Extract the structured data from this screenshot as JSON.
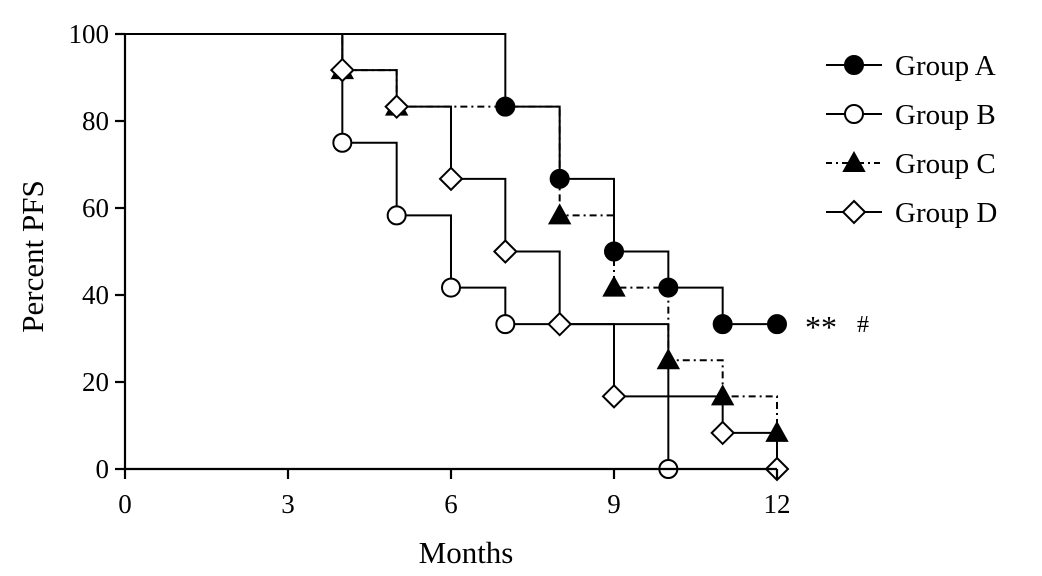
{
  "chart_data": {
    "type": "line",
    "title": "",
    "xlabel": "Months",
    "ylabel": "Percent PFS",
    "xlim": [
      0,
      12
    ],
    "ylim": [
      0,
      100
    ],
    "xticks": [
      0,
      3,
      6,
      9,
      12
    ],
    "yticks": [
      0,
      20,
      40,
      60,
      80,
      100
    ],
    "grid": false,
    "legend_position": "top-right",
    "series": [
      {
        "name": "Group A",
        "line_style": "solid",
        "marker": "filled-circle",
        "x": [
          0,
          7,
          8,
          9,
          10,
          11,
          12
        ],
        "y": [
          100,
          83.3,
          66.7,
          50,
          41.7,
          33.3,
          33.3
        ],
        "markers_x": [
          7,
          8,
          9,
          10,
          11,
          12
        ],
        "markers_y": [
          83.3,
          66.7,
          50,
          41.7,
          33.3,
          33.3
        ]
      },
      {
        "name": "Group B",
        "line_style": "solid",
        "marker": "open-circle",
        "x": [
          0,
          4,
          5,
          6,
          7,
          10
        ],
        "y": [
          100,
          75,
          58.3,
          41.7,
          33.3,
          0
        ],
        "markers_x": [
          4,
          5,
          6,
          7,
          10
        ],
        "markers_y": [
          75,
          58.3,
          41.7,
          33.3,
          0
        ]
      },
      {
        "name": "Group C",
        "line_style": "dash-dot",
        "marker": "filled-triangle",
        "x": [
          0,
          4,
          5,
          8,
          9,
          10,
          11,
          12
        ],
        "y": [
          100,
          91.7,
          83.3,
          58.3,
          41.7,
          25,
          16.7,
          8.3
        ],
        "markers_x": [
          4,
          5,
          8,
          9,
          10,
          11,
          12
        ],
        "markers_y": [
          91.7,
          83.3,
          58.3,
          41.7,
          25,
          16.7,
          8.3
        ]
      },
      {
        "name": "Group D",
        "line_style": "solid",
        "marker": "open-diamond",
        "x": [
          0,
          4,
          5,
          6,
          7,
          8,
          9,
          11,
          12
        ],
        "y": [
          100,
          91.7,
          83.3,
          66.7,
          50,
          33.3,
          16.7,
          8.3,
          0
        ],
        "markers_x": [
          4,
          5,
          6,
          7,
          8,
          9,
          11,
          12
        ],
        "markers_y": [
          91.7,
          83.3,
          66.7,
          50,
          33.3,
          16.7,
          8.3,
          0
        ]
      }
    ],
    "annotations": [
      {
        "text": "**",
        "x": 12,
        "y": 33.3
      },
      {
        "text": "#",
        "x": 12,
        "y": 33.3
      }
    ]
  }
}
